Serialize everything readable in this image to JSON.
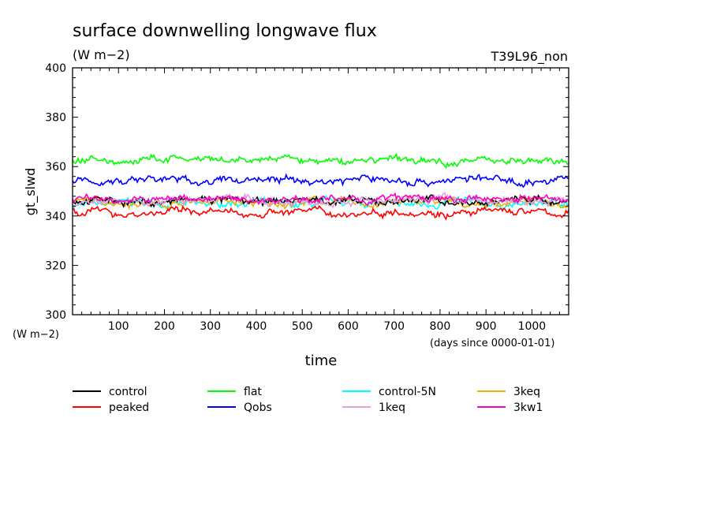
{
  "chart_data": {
    "type": "line",
    "title": "surface downwelling longwave flux",
    "subtitle": "(W m−2)",
    "run_label": "T39L96_non",
    "xlabel": "time",
    "x_unit": "(days since 0000-01-01)",
    "ylabel": "gt_slwd",
    "y_unit": "(W m−2)",
    "xlim": [
      0,
      1080
    ],
    "ylim": [
      300,
      400
    ],
    "x_ticks": [
      "100",
      "200",
      "300",
      "400",
      "500",
      "600",
      "700",
      "800",
      "900",
      "1000"
    ],
    "y_ticks": [
      "300",
      "320",
      "340",
      "360",
      "380",
      "400"
    ],
    "series": [
      {
        "name": "control",
        "color": "#000000",
        "mean": 346.0
      },
      {
        "name": "peaked",
        "color": "#ff0000",
        "mean": 341.5
      },
      {
        "name": "flat",
        "color": "#00ff00",
        "mean": 362.5
      },
      {
        "name": "Qobs",
        "color": "#0000ff",
        "mean": 354.5
      },
      {
        "name": "control-5N",
        "color": "#00ffff",
        "mean": 345.0
      },
      {
        "name": "1keq",
        "color": "#e0a0e0",
        "mean": 346.0
      },
      {
        "name": "3keq",
        "color": "#f0b000",
        "mean": 345.5
      },
      {
        "name": "3kw1",
        "color": "#ff00c0",
        "mean": 346.8
      }
    ]
  }
}
